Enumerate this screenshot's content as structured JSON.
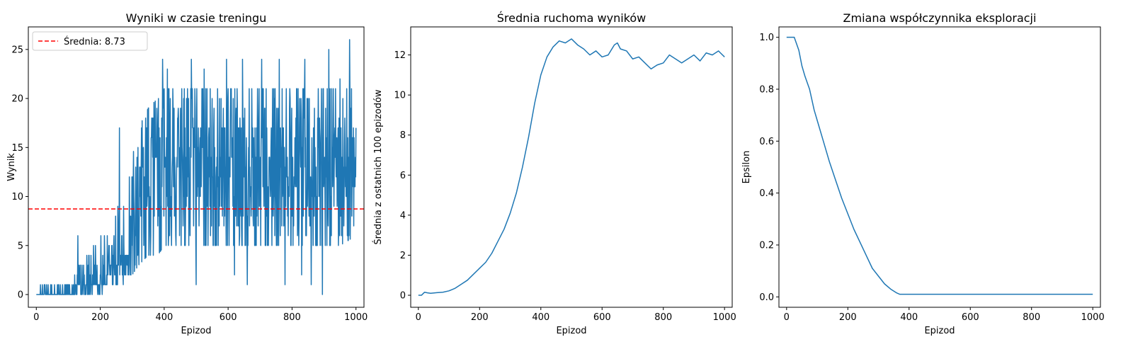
{
  "figure": {
    "background": "#ffffff"
  },
  "chart_data": [
    {
      "type": "line",
      "title": "Wyniki w czasie treningu",
      "xlabel": "Epizod",
      "ylabel": "Wynik",
      "xlim": [
        -25,
        1025
      ],
      "ylim": [
        -1.3,
        27.3
      ],
      "xticks": [
        0,
        200,
        400,
        600,
        800,
        1000
      ],
      "yticks": [
        0,
        5,
        10,
        15,
        20,
        25
      ],
      "grid": false,
      "legend": {
        "placement": "top-left",
        "entries": [
          "Średnia: 8.73"
        ]
      },
      "series": [
        {
          "color": "#1f77b4",
          "generated": true,
          "envelope": {
            "x": [
              0,
              20,
              50,
              80,
              100,
              130,
              150,
              180,
              200,
              220,
              250,
              270,
              300,
              320,
              350,
              380,
              400,
              450,
              500,
              550,
              600,
              650,
              700,
              750,
              800,
              850,
              900,
              950,
              1000
            ],
            "low": [
              0,
              0,
              0,
              0,
              0,
              0,
              0,
              0,
              0,
              1,
              1,
              1,
              2,
              3,
              4,
              4,
              5,
              5,
              5,
              5,
              5,
              5,
              5,
              5,
              5,
              5,
              5,
              5,
              6
            ],
            "high": [
              0,
              1,
              1,
              1,
              2,
              3,
              4,
              5,
              6,
              7,
              8,
              11,
              14,
              17,
              19,
              20,
              21,
              21,
              21,
              21,
              21,
              21,
              21,
              21,
              21,
              21,
              21,
              21,
              21
            ]
          },
          "anchors": [
            [
              0,
              0
            ],
            [
              130,
              6
            ],
            [
              260,
              17
            ],
            [
              395,
              24
            ],
            [
              410,
              23
            ],
            [
              485,
              24
            ],
            [
              525,
              23
            ],
            [
              595,
              24
            ],
            [
              645,
              24
            ],
            [
              705,
              24
            ],
            [
              760,
              24
            ],
            [
              840,
              24
            ],
            [
              915,
              25
            ],
            [
              950,
              22
            ],
            [
              980,
              26
            ],
            [
              620,
              2
            ],
            [
              660,
              1
            ],
            [
              500,
              1
            ],
            [
              778,
              1
            ],
            [
              895,
              0
            ],
            [
              860,
              1
            ],
            [
              830,
              2
            ]
          ]
        }
      ],
      "hlines": [
        {
          "y": 8.73,
          "color": "#ff0000",
          "style": "dashed",
          "label": "Średnia: 8.73"
        }
      ]
    },
    {
      "type": "line",
      "title": "Średnia ruchoma wyników",
      "xlabel": "Epizod",
      "ylabel": "Średnia z ostatnich 100 epizodów",
      "xlim": [
        -25,
        1025
      ],
      "ylim": [
        -0.6,
        13.4
      ],
      "xticks": [
        0,
        200,
        400,
        600,
        800,
        1000
      ],
      "yticks": [
        0,
        2,
        4,
        6,
        8,
        10,
        12
      ],
      "grid": false,
      "series": [
        {
          "color": "#1f77b4",
          "x": [
            0,
            10,
            20,
            30,
            40,
            60,
            80,
            100,
            120,
            140,
            160,
            180,
            200,
            220,
            240,
            260,
            280,
            300,
            320,
            340,
            360,
            380,
            400,
            420,
            440,
            460,
            480,
            500,
            520,
            540,
            560,
            580,
            600,
            620,
            640,
            650,
            660,
            680,
            700,
            720,
            740,
            760,
            780,
            800,
            820,
            840,
            860,
            880,
            900,
            920,
            940,
            960,
            980,
            1000
          ],
          "values": [
            0,
            0,
            0.15,
            0.12,
            0.1,
            0.13,
            0.15,
            0.22,
            0.35,
            0.55,
            0.75,
            1.05,
            1.35,
            1.65,
            2.1,
            2.7,
            3.3,
            4.1,
            5.1,
            6.4,
            7.9,
            9.6,
            11.0,
            11.9,
            12.4,
            12.7,
            12.6,
            12.8,
            12.5,
            12.3,
            12.0,
            12.2,
            11.9,
            12.0,
            12.5,
            12.6,
            12.3,
            12.2,
            11.8,
            11.9,
            11.6,
            11.3,
            11.5,
            11.6,
            12.0,
            11.8,
            11.6,
            11.8,
            12.0,
            11.7,
            12.1,
            12.0,
            12.2,
            11.9
          ]
        }
      ]
    },
    {
      "type": "line",
      "title": "Zmiana współczynnika eksploracji",
      "xlabel": "Epizod",
      "ylabel": "Epsilon",
      "xlim": [
        -25,
        1025
      ],
      "ylim": [
        -0.04,
        1.04
      ],
      "xticks": [
        0,
        200,
        400,
        600,
        800,
        1000
      ],
      "yticks": [
        0.0,
        0.2,
        0.4,
        0.6,
        0.8,
        1.0
      ],
      "grid": false,
      "series": [
        {
          "color": "#1f77b4",
          "x": [
            0,
            25,
            40,
            50,
            60,
            75,
            90,
            100,
            120,
            140,
            160,
            180,
            200,
            220,
            240,
            260,
            280,
            300,
            320,
            340,
            360,
            370,
            380,
            400,
            500,
            600,
            700,
            800,
            900,
            1000
          ],
          "values": [
            1.0,
            1.0,
            0.95,
            0.89,
            0.85,
            0.8,
            0.72,
            0.68,
            0.6,
            0.52,
            0.45,
            0.38,
            0.32,
            0.26,
            0.21,
            0.16,
            0.11,
            0.08,
            0.05,
            0.03,
            0.015,
            0.01,
            0.01,
            0.01,
            0.01,
            0.01,
            0.01,
            0.01,
            0.01,
            0.01
          ]
        }
      ]
    }
  ]
}
